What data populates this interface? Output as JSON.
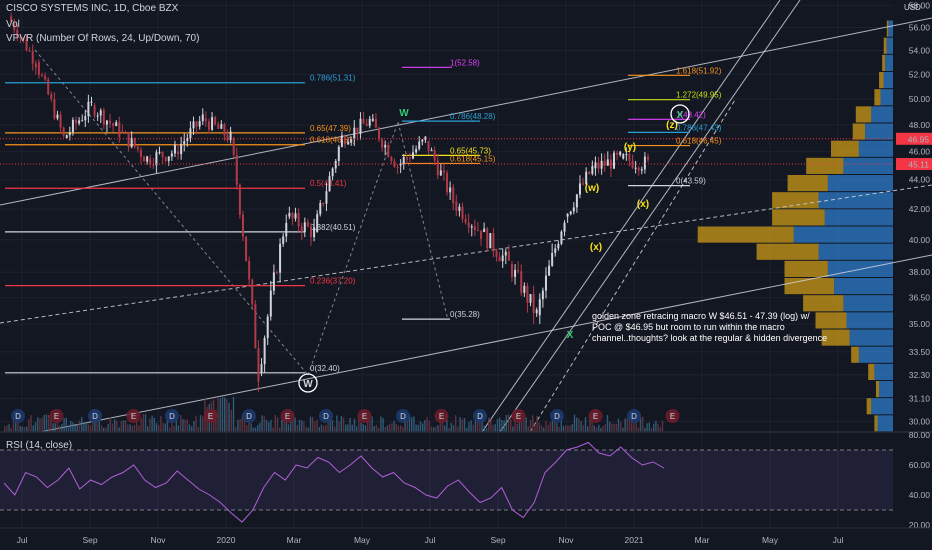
{
  "header": {
    "title": "CISCO SYSTEMS INC, 1D, Cboe BZX",
    "vol_label": "Vol",
    "vpvr_label": "VPVR (Number Of Rows, 24, Up/Down, 70)",
    "currency": "USD"
  },
  "rsi": {
    "label": "RSI (14, close)"
  },
  "note": "golden zone retracing macro W $46.51 - 47.39 (log) w/ POC @ $46.95 but room to run within the macro channel..thoughts?  look at the regular & hidden divergence",
  "chart_data": [
    {
      "type": "candlestick",
      "title": "CISCO SYSTEMS INC, 1D, Cboe BZX",
      "scale": "log",
      "ylim": [
        29.5,
        58.5
      ],
      "y_ticks": [
        "58.00",
        "56.00",
        "54.00",
        "52.00",
        "50.00",
        "48.00",
        "46.00",
        "44.00",
        "42.00",
        "40.00",
        "38.00",
        "36.50",
        "35.00",
        "33.50",
        "32.30",
        "31.10",
        "30.00"
      ],
      "x_ticks": [
        "Jul",
        "Sep",
        "Nov",
        "2020",
        "Mar",
        "May",
        "Jul",
        "Sep",
        "Nov",
        "2021",
        "Mar",
        "May",
        "Jul"
      ],
      "close_path": [
        {
          "date": "Jul 2019",
          "close": 57.0
        },
        {
          "date": "Aug 2019",
          "close": 53.0
        },
        {
          "date": "Aug 2019",
          "close": 47.0
        },
        {
          "date": "Sep 2019",
          "close": 49.5
        },
        {
          "date": "Oct 2019",
          "close": 47.5
        },
        {
          "date": "Nov 2019",
          "close": 45.5
        },
        {
          "date": "Dec 2019",
          "close": 46.0
        },
        {
          "date": "Jan 2020",
          "close": 48.5
        },
        {
          "date": "Feb 2020",
          "close": 47.0
        },
        {
          "date": "Mar 2020",
          "close": 32.4
        },
        {
          "date": "Mar 2020",
          "close": 41.5
        },
        {
          "date": "Apr 2020",
          "close": 40.5
        },
        {
          "date": "May 2020",
          "close": 47.0
        },
        {
          "date": "Jun 2020",
          "close": 48.3
        },
        {
          "date": "Jul 2020",
          "close": 45.0
        },
        {
          "date": "Aug 2020",
          "close": 46.8
        },
        {
          "date": "Aug 2020",
          "close": 42.5
        },
        {
          "date": "Sep 2020",
          "close": 40.5
        },
        {
          "date": "Oct 2020",
          "close": 38.5
        },
        {
          "date": "Oct 2020",
          "close": 35.5
        },
        {
          "date": "Nov 2020",
          "close": 41.5
        },
        {
          "date": "Dec 2020",
          "close": 44.8
        },
        {
          "date": "Jan 2021",
          "close": 45.5
        },
        {
          "date": "Feb 2021",
          "close": 45.11
        }
      ],
      "price_labels": [
        {
          "value": 46.95,
          "text": "46.95",
          "color": "#f23645"
        },
        {
          "value": 45.11,
          "text": "45.11",
          "color": "#f23645"
        }
      ],
      "fib_levels": [
        {
          "text": "0.786(51.31)",
          "value": 51.31,
          "color": "#2a9fd6"
        },
        {
          "text": "0.65(47.39)",
          "value": 47.39,
          "color": "#f7931a"
        },
        {
          "text": "0.618(46.51)",
          "value": 46.51,
          "color": "#f7931a"
        },
        {
          "text": "0.5(43.41)",
          "value": 43.41,
          "color": "#f23645"
        },
        {
          "text": "0.382(40.51)",
          "value": 40.51,
          "color": "#d1d4dc"
        },
        {
          "text": "0.236(37.20)",
          "value": 37.2,
          "color": "#f23645"
        },
        {
          "text": "0(32.40)",
          "value": 32.4,
          "color": "#d1d4dc"
        },
        {
          "text": "1(52.58)",
          "value": 52.58,
          "color": "#e040fb"
        },
        {
          "text": "0.786(48.28)",
          "value": 48.28,
          "color": "#2a9fd6"
        },
        {
          "text": "0.65(45.73)",
          "value": 45.73,
          "color": "#f7e11a"
        },
        {
          "text": "0.618(45.15)",
          "value": 45.15,
          "color": "#f7931a"
        },
        {
          "text": "0(35.28)",
          "value": 35.28,
          "color": "#d1d4dc"
        },
        {
          "text": "1.618(51.92)",
          "value": 51.92,
          "color": "#f7931a"
        },
        {
          "text": "1.272(49.95)",
          "value": 49.95,
          "color": "#c6e014"
        },
        {
          "text": "1(48.42)",
          "value": 48.42,
          "color": "#e040fb"
        },
        {
          "text": "0.786(47.43)",
          "value": 47.43,
          "color": "#2a9fd6"
        },
        {
          "text": "0.618(46.45)",
          "value": 46.45,
          "color": "#f7931a"
        },
        {
          "text": "0(43.59)",
          "value": 43.59,
          "color": "#d1d4dc"
        }
      ],
      "wave_labels": [
        {
          "text": "W",
          "color": "#d1d4dc",
          "circled": true,
          "date": "Mar 2020"
        },
        {
          "text": "W",
          "color": "#2ecc71",
          "date": "Jun 2020"
        },
        {
          "text": "X",
          "color": "#2ecc71",
          "date": "Oct 2020"
        },
        {
          "text": "(w)",
          "color": "#f7e11a",
          "date": "Nov 2020"
        },
        {
          "text": "(x)",
          "color": "#f7e11a",
          "date": "Nov 2020"
        },
        {
          "text": "(y)",
          "color": "#f7e11a",
          "date": "Jan 2021"
        },
        {
          "text": "(x)",
          "color": "#f7e11a",
          "date": "Jan 2021"
        },
        {
          "text": "(z)",
          "color": "#f7e11a",
          "date": "Feb 2021"
        },
        {
          "text": "X",
          "color": "#2ecc71",
          "circled": true,
          "date": "Feb 2021"
        }
      ],
      "event_markers": [
        "D",
        "E",
        "D",
        "E",
        "D",
        "E",
        "D",
        "E",
        "D",
        "E",
        "D",
        "E",
        "D",
        "E",
        "D",
        "E",
        "D",
        "E"
      ],
      "volume_profile": [
        {
          "up": 2,
          "down": 10
        },
        {
          "up": 3,
          "down": 14
        },
        {
          "up": 2,
          "down": 9
        },
        {
          "up": 4,
          "down": 12
        },
        {
          "up": 5,
          "down": 22
        },
        {
          "up": 18,
          "down": 28
        },
        {
          "up": 20,
          "down": 30
        },
        {
          "up": 26,
          "down": 32
        },
        {
          "up": 32,
          "down": 38
        },
        {
          "up": 28,
          "down": 42
        },
        {
          "up": 40,
          "down": 48
        },
        {
          "up": 62,
          "down": 64
        },
        {
          "up": 34,
          "down": 44
        },
        {
          "up": 30,
          "down": 48
        },
        {
          "up": 26,
          "down": 42
        },
        {
          "up": 24,
          "down": 32
        },
        {
          "up": 18,
          "down": 22
        },
        {
          "up": 8,
          "down": 18
        },
        {
          "up": 10,
          "down": 14
        },
        {
          "up": 4,
          "down": 8
        },
        {
          "up": 3,
          "down": 6
        },
        {
          "up": 2,
          "down": 5
        },
        {
          "up": 2,
          "down": 4
        },
        {
          "up": 1,
          "down": 3
        }
      ]
    },
    {
      "type": "line",
      "title": "RSI (14, close)",
      "ylim": [
        18,
        82
      ],
      "y_ticks": [
        "80.00",
        "60.00",
        "40.00",
        "20.00"
      ],
      "bands": [
        70,
        30
      ],
      "series": [
        {
          "values": [
            48,
            40,
            55,
            52,
            45,
            50,
            58,
            44,
            50,
            47,
            52,
            55,
            60,
            50,
            45,
            48,
            56,
            50,
            44,
            40,
            35,
            28,
            22,
            30,
            45,
            55,
            50,
            60,
            58,
            65,
            62,
            55,
            60,
            66,
            58,
            52,
            55,
            48,
            45,
            40,
            38,
            46,
            50,
            42,
            35,
            38,
            45,
            30,
            25,
            35,
            55,
            62,
            70,
            72,
            75,
            68,
            66,
            72,
            65,
            60,
            62,
            58
          ]
        }
      ]
    }
  ]
}
